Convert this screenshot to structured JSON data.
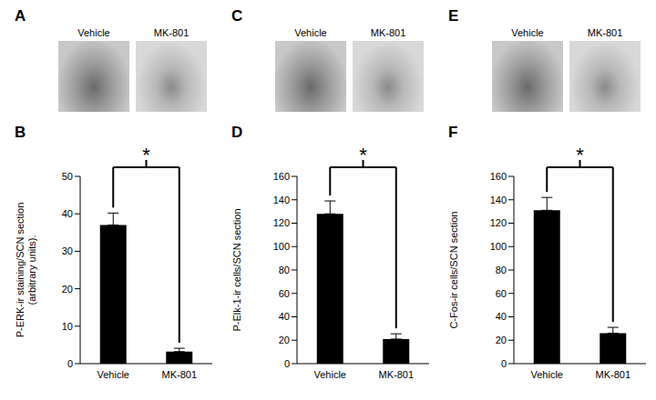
{
  "image_panels": [
    {
      "letter": "A",
      "labels": [
        "Vehicle",
        "MK-801"
      ]
    },
    {
      "letter": "C",
      "labels": [
        "Vehicle",
        "MK-801"
      ]
    },
    {
      "letter": "E",
      "labels": [
        "Vehicle",
        "MK-801"
      ]
    }
  ],
  "chart_data": [
    {
      "type": "bar",
      "title": "B",
      "categories": [
        "Vehicle",
        "MK-801"
      ],
      "values": [
        37,
        3.2
      ],
      "errors": [
        3.2,
        0.9
      ],
      "color": "#000000",
      "ylabel": [
        "P-ERK-ir staining/SCN section",
        "(arbitrary units)."
      ],
      "ylim": [
        0,
        50
      ],
      "yticks": [
        0,
        10,
        20,
        30,
        40,
        50
      ],
      "annotations": [
        "*"
      ]
    },
    {
      "type": "bar",
      "title": "D",
      "categories": [
        "Vehicle",
        "MK-801"
      ],
      "values": [
        128,
        21
      ],
      "errors": [
        11,
        4.5
      ],
      "color": "#000000",
      "ylabel": [
        "P-Elk-1-ir cells/SCN section"
      ],
      "ylim": [
        0,
        160
      ],
      "yticks": [
        0,
        20,
        40,
        60,
        80,
        100,
        120,
        140,
        160
      ],
      "annotations": [
        "*"
      ]
    },
    {
      "type": "bar",
      "title": "F",
      "categories": [
        "Vehicle",
        "MK-801"
      ],
      "values": [
        131,
        26
      ],
      "errors": [
        11,
        5
      ],
      "color": "#000000",
      "ylabel": [
        "C-Fos-ir cells/SCN section"
      ],
      "ylim": [
        0,
        160
      ],
      "yticks": [
        0,
        20,
        40,
        60,
        80,
        100,
        120,
        140,
        160
      ],
      "annotations": [
        "*"
      ]
    }
  ]
}
